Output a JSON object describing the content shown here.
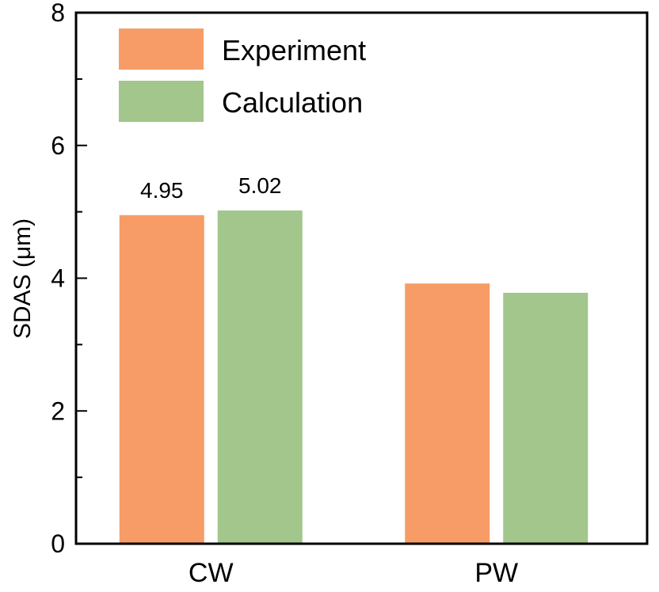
{
  "chart_data": {
    "type": "bar",
    "title": "",
    "xlabel": "",
    "ylabel": "SDAS  (μm)",
    "ylim": [
      0,
      8
    ],
    "yticks": [
      0,
      2,
      4,
      6,
      8
    ],
    "ytick_labels": [
      "0",
      "2",
      "4",
      "6",
      "8"
    ],
    "categories": [
      "CW",
      "PW"
    ],
    "series": [
      {
        "name": "Experiment",
        "color": "#F79C67",
        "values": [
          4.95,
          3.92
        ],
        "data_labels": [
          "4.95",
          null
        ]
      },
      {
        "name": "Calculation",
        "color": "#A2C68B",
        "values": [
          5.02,
          3.78
        ],
        "data_labels": [
          "5.02",
          null
        ]
      }
    ],
    "legend_position": "top-left",
    "grid": false
  }
}
